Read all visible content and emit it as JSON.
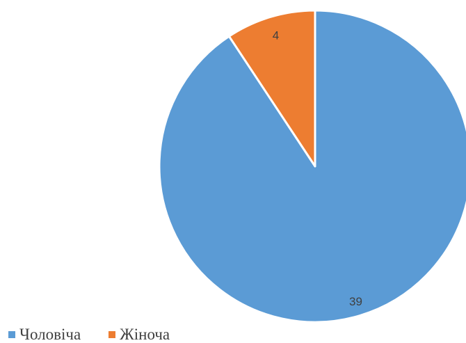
{
  "chart_data": {
    "type": "pie",
    "title": "",
    "slices": [
      {
        "name": "Чоловіча",
        "value": 39,
        "color": "#5B9BD5"
      },
      {
        "name": "Жіноча",
        "value": 4,
        "color": "#ED7D31"
      }
    ],
    "data_labels": [
      "39",
      "4"
    ],
    "start_angle_deg": 0,
    "direction": "clockwise",
    "slice_border_color": "#ffffff",
    "legend_position": "bottom-left"
  },
  "legend": {
    "items": [
      {
        "label": "Чоловіча",
        "color": "#5B9BD5"
      },
      {
        "label": "Жіноча",
        "color": "#ED7D31"
      }
    ]
  }
}
